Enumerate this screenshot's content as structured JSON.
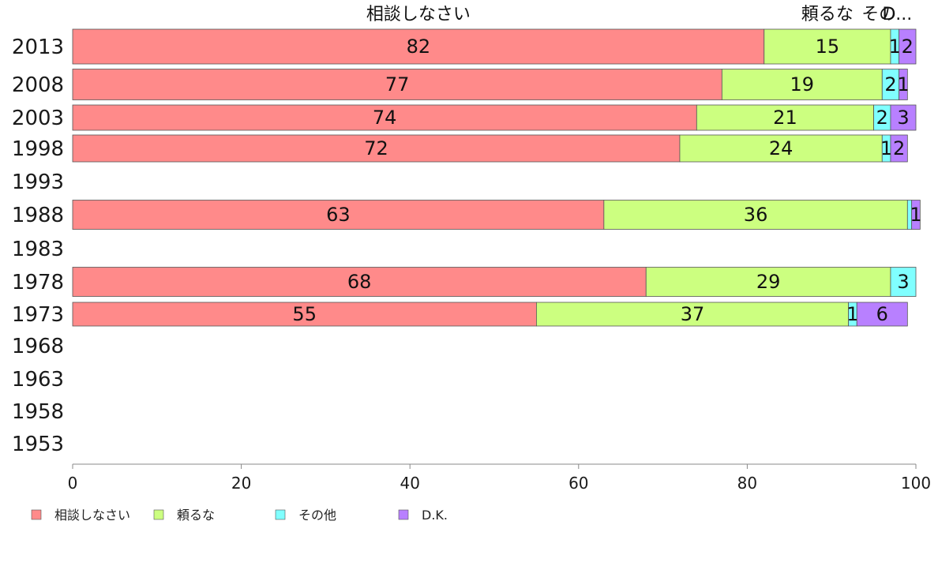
{
  "colors": {
    "相談しなさい": "#ff8a8a",
    "頼るな": "#ccff80",
    "その他": "#80ffff",
    "D.K.": "#b880ff",
    "bar_stroke": "#555555",
    "axis": "#888888"
  },
  "top_labels": [
    {
      "series": "相談しなさい",
      "text": "相談しなさい"
    },
    {
      "series": "頼るな",
      "text": "頼るな"
    },
    {
      "series": "その他",
      "text": "その"
    },
    {
      "series": "D.K.",
      "text": "D..."
    }
  ],
  "chart_data": {
    "type": "bar",
    "orientation": "horizontal",
    "stacked": true,
    "categories": [
      "2013",
      "2008",
      "2003",
      "1998",
      "1993",
      "1988",
      "1983",
      "1978",
      "1973",
      "1968",
      "1963",
      "1958",
      "1953"
    ],
    "series": [
      {
        "name": "相談しなさい",
        "values": [
          82,
          77,
          74,
          72,
          null,
          63,
          null,
          68,
          55,
          null,
          null,
          null,
          null
        ]
      },
      {
        "name": "頼るな",
        "values": [
          15,
          19,
          21,
          24,
          null,
          36,
          null,
          29,
          37,
          null,
          null,
          null,
          null
        ]
      },
      {
        "name": "その他",
        "values": [
          1,
          2,
          2,
          1,
          null,
          0.5,
          null,
          3,
          1,
          null,
          null,
          null,
          null
        ]
      },
      {
        "name": "D.K.",
        "values": [
          2,
          1,
          3,
          2,
          null,
          1,
          null,
          0,
          6,
          null,
          null,
          null,
          null
        ]
      }
    ],
    "value_labels": [
      [
        "82",
        "15",
        "1",
        "2"
      ],
      [
        "77",
        "19",
        "2",
        "1"
      ],
      [
        "74",
        "21",
        "2",
        "3"
      ],
      [
        "72",
        "24",
        "1",
        "2"
      ],
      null,
      [
        "63",
        "36",
        "",
        "1"
      ],
      null,
      [
        "68",
        "29",
        "3",
        ""
      ],
      [
        "55",
        "37",
        "1",
        "6"
      ],
      null,
      null,
      null,
      null
    ],
    "xlim": [
      0,
      100
    ],
    "xticks": [
      "0",
      "20",
      "40",
      "60",
      "80",
      "100"
    ],
    "legend_position": "bottom-left",
    "grid": false
  }
}
